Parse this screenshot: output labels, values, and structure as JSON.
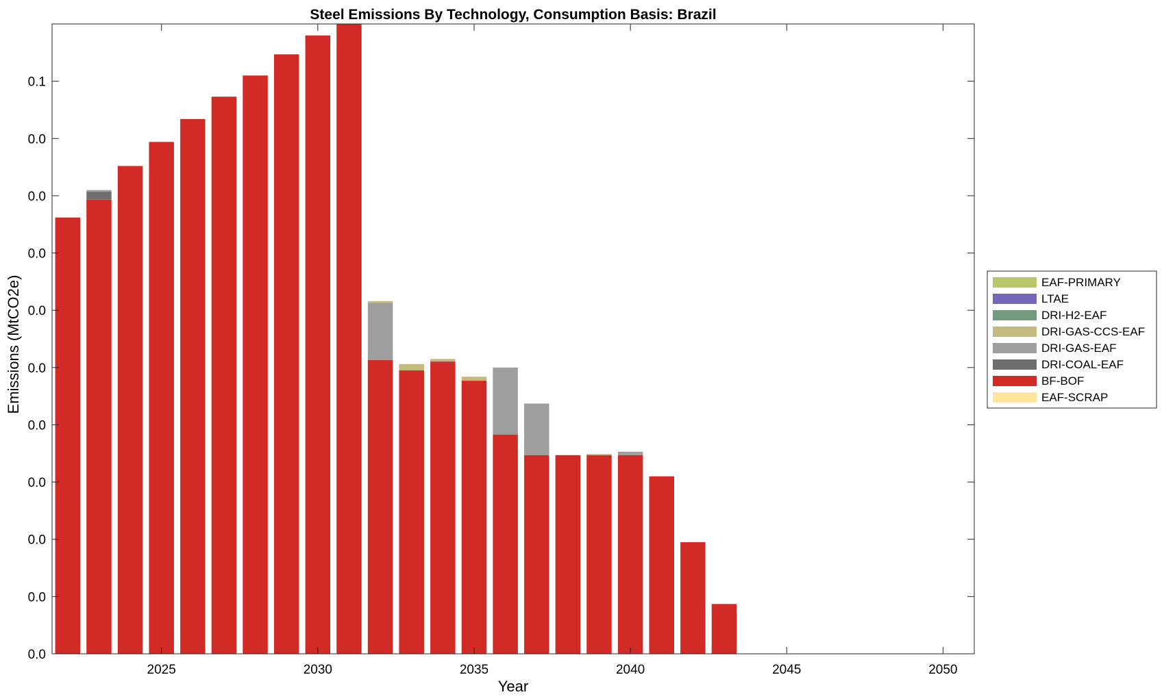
{
  "chart_data": {
    "type": "bar",
    "stacked": true,
    "title": "Steel Emissions By Technology, Consumption Basis: Brazil",
    "xlabel": "Year",
    "ylabel": "Emissions (MtCO2e)",
    "xlim": [
      2021.5,
      2051
    ],
    "ylim": [
      0,
      0.11
    ],
    "grid": false,
    "legend_position": "right-outside",
    "x_ticks": [
      2025,
      2030,
      2035,
      2040,
      2045,
      2050
    ],
    "y_ticks": [
      0,
      0.01,
      0.02,
      0.03,
      0.04,
      0.05,
      0.06,
      0.07,
      0.08,
      0.09,
      0.1
    ],
    "y_tick_labels": [
      "0.0",
      "0.0",
      "0.0",
      "0.0",
      "0.0",
      "0.0",
      "0.0",
      "0.0",
      "0.0",
      "0.0",
      "0.1"
    ],
    "x": [
      2022,
      2023,
      2024,
      2025,
      2026,
      2027,
      2028,
      2029,
      2030,
      2031,
      2032,
      2033,
      2034,
      2035,
      2036,
      2037,
      2038,
      2039,
      2040,
      2041,
      2042,
      2043
    ],
    "series": [
      {
        "name": "EAF-SCRAP",
        "color": "#FFE699",
        "values": [
          0,
          0,
          0,
          0,
          0,
          0,
          0,
          0,
          0,
          0,
          0,
          0,
          0,
          0,
          0,
          0,
          0,
          0,
          0,
          0,
          0,
          0
        ]
      },
      {
        "name": "BF-BOF",
        "color": "#D22B25",
        "values": [
          0.0762,
          0.0793,
          0.0852,
          0.0894,
          0.0934,
          0.0973,
          0.101,
          0.1047,
          0.108,
          0.11,
          0.0513,
          0.0495,
          0.051,
          0.0477,
          0.0383,
          0.0347,
          0.0347,
          0.0347,
          0.0347,
          0.031,
          0.0195,
          0.0087
        ]
      },
      {
        "name": "DRI-COAL-EAF",
        "color": "#6E6E6E",
        "values": [
          0,
          0.0014,
          0,
          0,
          0,
          0,
          0,
          0,
          0,
          0,
          0,
          0,
          0,
          0,
          0,
          0,
          0,
          0,
          0,
          0,
          0,
          0
        ]
      },
      {
        "name": "DRI-GAS-EAF",
        "color": "#9E9E9E",
        "values": [
          0,
          0.0003,
          0,
          0,
          0,
          0,
          0,
          0,
          0,
          0,
          0.01,
          0,
          0.0002,
          0,
          0.0117,
          0.009,
          0,
          0,
          0.0006,
          0,
          0,
          0
        ]
      },
      {
        "name": "DRI-GAS-CCS-EAF",
        "color": "#C4BA7D",
        "values": [
          0,
          0,
          0,
          0,
          0,
          0,
          0,
          0,
          0,
          0,
          0.0003,
          0.0011,
          0.0003,
          0.0007,
          0,
          0,
          0,
          0.0002,
          0,
          0,
          0,
          0
        ]
      },
      {
        "name": "DRI-H2-EAF",
        "color": "#739A7C",
        "values": [
          0,
          0,
          0,
          0,
          0,
          0,
          0,
          0,
          0,
          0,
          0,
          0,
          0,
          0,
          0,
          0,
          0,
          0,
          0,
          0,
          0,
          0
        ]
      },
      {
        "name": "LTAE",
        "color": "#7369BA",
        "values": [
          0,
          0,
          0,
          0,
          0,
          0,
          0,
          0,
          0,
          0,
          0,
          0,
          0,
          0,
          0,
          0,
          0,
          0,
          0,
          0,
          0,
          0
        ]
      },
      {
        "name": "EAF-PRIMARY",
        "color": "#BAC66A",
        "values": [
          0,
          0,
          0,
          0,
          0,
          0,
          0,
          0,
          0,
          0,
          0,
          0,
          0,
          0,
          0,
          0,
          0,
          0,
          0,
          0,
          0,
          0
        ]
      }
    ],
    "legend_order": [
      "EAF-PRIMARY",
      "LTAE",
      "DRI-H2-EAF",
      "DRI-GAS-CCS-EAF",
      "DRI-GAS-EAF",
      "DRI-COAL-EAF",
      "BF-BOF",
      "EAF-SCRAP"
    ]
  }
}
